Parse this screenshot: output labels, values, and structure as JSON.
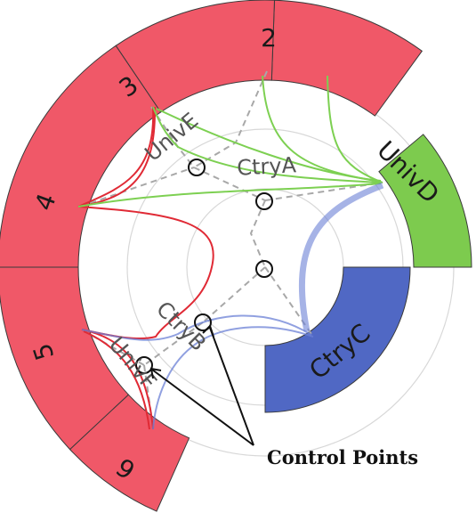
{
  "segments": [
    {
      "id": "seg-2",
      "label": "2",
      "group": "red"
    },
    {
      "id": "seg-3",
      "label": "3",
      "group": "red"
    },
    {
      "id": "seg-4",
      "label": "4",
      "group": "red"
    },
    {
      "id": "seg-5",
      "label": "5",
      "group": "red"
    },
    {
      "id": "seg-6",
      "label": "6",
      "group": "red"
    },
    {
      "id": "seg-univd",
      "label": "UnivD",
      "group": "green"
    },
    {
      "id": "seg-ctryc",
      "label": "CtryC",
      "group": "blue"
    }
  ],
  "inner_labels": {
    "univ_e": "UnivE",
    "ctry_a": "CtryA",
    "ctry_b": "CtryB",
    "univ_f": "UnivF"
  },
  "annotation": {
    "control_points_label": "Control Points"
  },
  "colors": {
    "red": "#f05868",
    "red_edge": "#e02a35",
    "green": "#7dcb4e",
    "green_edge": "#7dd052",
    "blue": "#5068c4",
    "blue_edge": "#6b80d6",
    "outline": "#3a3a3a",
    "guide": "#d8d8d8",
    "dash": "#a8a8a8"
  }
}
